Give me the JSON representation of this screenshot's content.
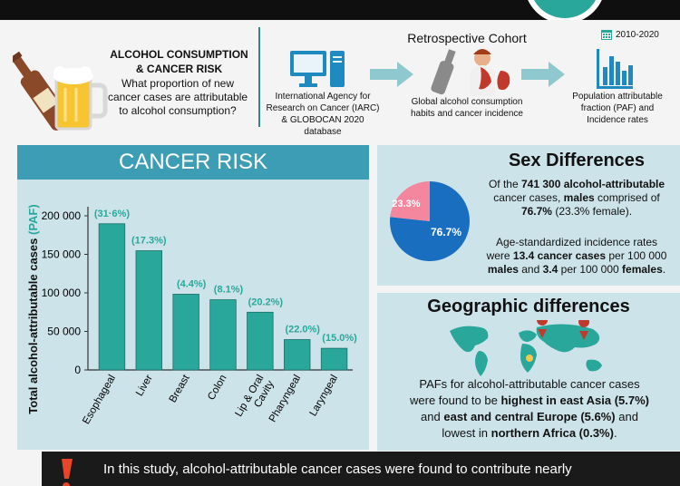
{
  "header": {
    "title_line1": "ALCOHOL CONSUMPTION",
    "title_line2": "& CANCER RISK",
    "question_line1": "What proportion of new",
    "question_line2": "cancer cases are attributable",
    "question_line3": "to alcohol consumption?",
    "cohort_title": "Retrospective Cohort",
    "year_range": "2010-2020",
    "steps": [
      {
        "lines": [
          "International Agency for",
          "Research on Cancer (IARC)",
          "& GLOBOCAN 2020 database"
        ],
        "icon": "computer-icon"
      },
      {
        "lines": [
          "Global alcohol consumption",
          "habits and cancer incidence"
        ],
        "icon": "bottle-person-icon"
      },
      {
        "lines": [
          "Population attributable",
          "fraction (PAF) and",
          "Incidence rates"
        ],
        "icon": "bar-chart-icon"
      }
    ]
  },
  "cancer_risk": {
    "title": "CANCER RISK",
    "ylabel_main": "Total alcohol-attributable cases",
    "ylabel_paf": "(PAF)",
    "yticks": [
      "0",
      "50 000",
      "100 000",
      "150 000",
      "200 000"
    ],
    "colors": {
      "bar": "#2aa79b",
      "paf": "#2aa79b"
    }
  },
  "chart_data": {
    "type": "bar",
    "categories": [
      "Esophageal",
      "Liver",
      "Breast",
      "Colon",
      "Lip & Oral Cavity",
      "Pharyngeal",
      "Laryngeal"
    ],
    "values": [
      189700,
      154700,
      98300,
      91100,
      74900,
      39400,
      28100
    ],
    "labels": [
      "(31·6%)",
      "(17.3%)",
      "(4.4%)",
      "(8.1%)",
      "(20.2%)",
      "(22.0%)",
      "(15.0%)"
    ],
    "ylim": [
      0,
      200000
    ]
  },
  "sex": {
    "title": "Sex Differences",
    "pie_male": "76.7%",
    "pie_female": "23.3%",
    "male_fraction": 0.767,
    "text1_a": "Of the ",
    "text1_b": "741 300 alcohol-attributable",
    "text1_c": "cancer cases, ",
    "text1_d": "males",
    "text1_e": " comprised of",
    "text1_f": "76.7%",
    "text1_g": " (23.3% female).",
    "text2_a": "Age-standardized incidence rates",
    "text2_b": "were ",
    "text2_c": "13.4 cancer cases",
    "text2_d": " per 100 000",
    "text2_e": "males",
    "text2_f": " and ",
    "text2_g": "3.4",
    "text2_h": " per 100 000 ",
    "text2_i": "females",
    "text2_j": ".",
    "colors": {
      "male": "#1a6ec0",
      "female": "#f4869e"
    }
  },
  "geo": {
    "title": "Geographic differences",
    "line1": "PAFs for alcohol-attributable cancer cases",
    "line2_a": "were found to be ",
    "line2_b": "highest in east Asia (5.7%)",
    "line3_a": "and ",
    "line3_b": "east and central Europe (5.6%)",
    "line3_c": " and",
    "line4_a": "lowest in ",
    "line4_b": "northern Africa (0.3%)",
    "line4_c": "."
  },
  "bottom": {
    "line1": "In this study, alcohol-attributable cancer cases were found to contribute nearly"
  }
}
